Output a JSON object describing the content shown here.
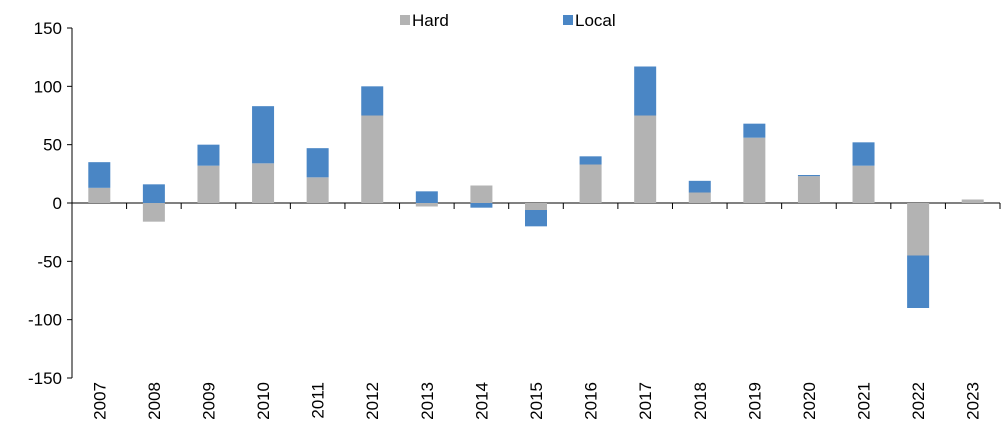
{
  "chart_data": {
    "type": "stacked-bar",
    "categories": [
      "2007",
      "2008",
      "2009",
      "2010",
      "2011",
      "2012",
      "2013",
      "2014",
      "2015",
      "2016",
      "2017",
      "2018",
      "2019",
      "2020",
      "2021",
      "2022",
      "2023"
    ],
    "series": [
      {
        "name": "Hard",
        "color": "#b3b3b3",
        "values": [
          13,
          -16,
          32,
          34,
          22,
          75,
          -3,
          15,
          -6,
          33,
          75,
          9,
          56,
          23,
          32,
          -45,
          3
        ]
      },
      {
        "name": "Local",
        "color": "#4a86c5",
        "values": [
          22,
          16,
          18,
          49,
          25,
          25,
          10,
          -4,
          -14,
          7,
          42,
          10,
          12,
          1,
          20,
          -45,
          0
        ]
      }
    ],
    "ylim": [
      -150,
      150
    ],
    "yticks": [
      -150,
      -100,
      -50,
      0,
      50,
      100,
      150
    ],
    "legend": "top"
  }
}
